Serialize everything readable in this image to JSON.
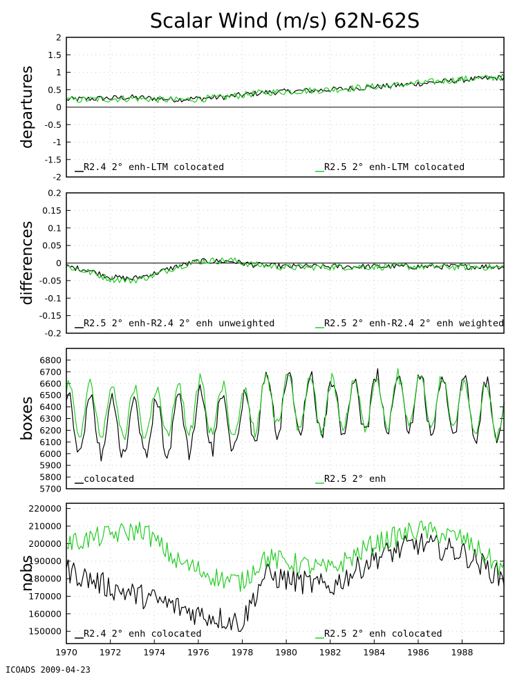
{
  "title": "Scalar Wind (m/s) 62N-62S",
  "footer": "ICOADS 2009-04-23",
  "colors": {
    "series_a": "#000000",
    "series_b": "#22cc22"
  },
  "x_ticks": [
    "1970",
    "1972",
    "1974",
    "1976",
    "1978",
    "1980",
    "1982",
    "1984",
    "1986",
    "1988"
  ],
  "chart_data": [
    {
      "type": "line",
      "ylabel": "departures",
      "ylim": [
        -2,
        2
      ],
      "xlim": [
        1970,
        1989.9
      ],
      "yticks": [
        "2",
        "1.5",
        "1",
        "0.5",
        "0",
        "-0.5",
        "-1",
        "-1.5",
        "-2"
      ],
      "zero_line": true,
      "grid": "dotted",
      "legend": [
        "R2.4 2° enh-LTM colocated",
        "R2.5 2° enh-LTM colocated"
      ],
      "series": [
        {
          "name": "R2.4 2° enh-LTM colocated",
          "color": "#000000",
          "x_start": 1970,
          "step_years": 0.0833,
          "anchors": [
            [
              1970,
              0.22
            ],
            [
              1973,
              0.28
            ],
            [
              1975,
              0.22
            ],
            [
              1977,
              0.28
            ],
            [
              1979,
              0.42
            ],
            [
              1982,
              0.5
            ],
            [
              1985,
              0.62
            ],
            [
              1988,
              0.78
            ],
            [
              1989.9,
              0.85
            ]
          ],
          "noise": 0.08
        },
        {
          "name": "R2.5 2° enh-LTM colocated",
          "color": "#22cc22",
          "x_start": 1970,
          "step_years": 0.0833,
          "anchors": [
            [
              1970,
              0.2
            ],
            [
              1973,
              0.25
            ],
            [
              1975,
              0.2
            ],
            [
              1977,
              0.27
            ],
            [
              1979,
              0.42
            ],
            [
              1982,
              0.5
            ],
            [
              1985,
              0.63
            ],
            [
              1988,
              0.8
            ],
            [
              1989.9,
              0.86
            ]
          ],
          "noise": 0.1
        }
      ]
    },
    {
      "type": "line",
      "ylabel": "differences",
      "ylim": [
        -0.2,
        0.2
      ],
      "xlim": [
        1970,
        1989.9
      ],
      "yticks": [
        "0.2",
        "0.15",
        "0.1",
        "0.05",
        "0",
        "-0.05",
        "-0.1",
        "-0.15",
        "-0.2"
      ],
      "zero_line": true,
      "grid": "dotted",
      "legend": [
        "R2.5 2° enh-R2.4 2° enh unweighted",
        "R2.5 2° enh-R2.4 2° enh weighted"
      ],
      "series": [
        {
          "name": "R2.5 2° enh-R2.4 2° enh unweighted",
          "color": "#000000",
          "x_start": 1970,
          "step_years": 0.0833,
          "anchors": [
            [
              1970,
              -0.01
            ],
            [
              1971,
              -0.02
            ],
            [
              1972,
              -0.04
            ],
            [
              1973,
              -0.045
            ],
            [
              1974,
              -0.03
            ],
            [
              1975,
              -0.01
            ],
            [
              1976,
              0.005
            ],
            [
              1977.5,
              0.005
            ],
            [
              1978.5,
              -0.005
            ],
            [
              1980,
              -0.01
            ],
            [
              1985,
              -0.01
            ],
            [
              1989.9,
              -0.01
            ]
          ],
          "noise": 0.008
        },
        {
          "name": "R2.5 2° enh-R2.4 2° enh weighted",
          "color": "#22cc22",
          "x_start": 1970,
          "step_years": 0.0833,
          "anchors": [
            [
              1970,
              -0.01
            ],
            [
              1971,
              -0.025
            ],
            [
              1972,
              -0.045
            ],
            [
              1973,
              -0.05
            ],
            [
              1974,
              -0.035
            ],
            [
              1975,
              -0.01
            ],
            [
              1976,
              0.005
            ],
            [
              1977.5,
              0.008
            ],
            [
              1978.5,
              -0.005
            ],
            [
              1980,
              -0.012
            ],
            [
              1985,
              -0.01
            ],
            [
              1989.9,
              -0.012
            ]
          ],
          "noise": 0.01
        }
      ]
    },
    {
      "type": "line",
      "ylabel": "boxes",
      "ylim": [
        5700,
        6900
      ],
      "xlim": [
        1970,
        1989.9
      ],
      "yticks": [
        "6800",
        "6700",
        "6600",
        "6500",
        "6400",
        "6300",
        "6200",
        "6100",
        "6000",
        "5900",
        "5800",
        "5700"
      ],
      "zero_line": false,
      "grid": "dotted",
      "legend": [
        "colocated",
        "R2.5 2° enh"
      ],
      "series": [
        {
          "name": "colocated",
          "color": "#000000",
          "x_start": 1970,
          "step_years": 0.0833,
          "anchors": [
            [
              1970,
              6250
            ],
            [
              1974,
              6200
            ],
            [
              1976,
              6300
            ],
            [
              1978,
              6250
            ],
            [
              1979,
              6450
            ],
            [
              1982,
              6400
            ],
            [
              1986,
              6450
            ],
            [
              1989.9,
              6350
            ]
          ],
          "amplitude": 260,
          "noise": 60
        },
        {
          "name": "R2.5 2° enh",
          "color": "#22cc22",
          "x_start": 1970,
          "step_years": 0.0833,
          "anchors": [
            [
              1970,
              6380
            ],
            [
              1974,
              6350
            ],
            [
              1976,
              6400
            ],
            [
              1978,
              6330
            ],
            [
              1979,
              6470
            ],
            [
              1982,
              6410
            ],
            [
              1986,
              6460
            ],
            [
              1989.9,
              6360
            ]
          ],
          "amplitude": 230,
          "noise": 45
        }
      ]
    },
    {
      "type": "line",
      "ylabel": "nobs",
      "ylim": [
        143000,
        223000
      ],
      "xlim": [
        1970,
        1989.9
      ],
      "yticks": [
        "220000",
        "210000",
        "200000",
        "190000",
        "180000",
        "170000",
        "160000",
        "150000"
      ],
      "zero_line": false,
      "grid": "dotted",
      "legend": [
        "R2.4 2° enh colocated",
        "R2.5 2° enh colocated"
      ],
      "series": [
        {
          "name": "R2.4 2° enh colocated",
          "color": "#000000",
          "x_start": 1970,
          "step_years": 0.0833,
          "anchors": [
            [
              1970,
              185000
            ],
            [
              1972,
              175000
            ],
            [
              1974,
              168000
            ],
            [
              1976,
              160000
            ],
            [
              1978,
              155000
            ],
            [
              1979,
              182000
            ],
            [
              1982,
              175000
            ],
            [
              1984,
              192000
            ],
            [
              1986,
              200000
            ],
            [
              1988,
              195000
            ],
            [
              1989.9,
              180000
            ]
          ],
          "noise": 7000
        },
        {
          "name": "R2.5 2° enh colocated",
          "color": "#22cc22",
          "x_start": 1970,
          "step_years": 0.0833,
          "anchors": [
            [
              1970,
              200000
            ],
            [
              1972,
              205000
            ],
            [
              1973.5,
              208000
            ],
            [
              1975,
              190000
            ],
            [
              1977,
              180000
            ],
            [
              1978,
              178000
            ],
            [
              1979,
              192000
            ],
            [
              1982,
              185000
            ],
            [
              1984,
              200000
            ],
            [
              1986,
              208000
            ],
            [
              1988,
              203000
            ],
            [
              1989.9,
              185000
            ]
          ],
          "noise": 6000
        }
      ]
    }
  ]
}
